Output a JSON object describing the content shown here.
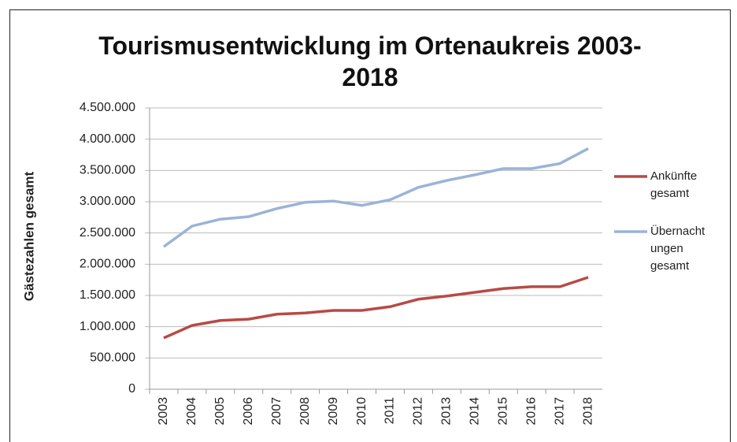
{
  "chart_data": {
    "type": "line",
    "title": "Tourismusentwicklung im Ortenaukreis 2003-2018",
    "y_label": "Gästezahlen gesamt",
    "categories": [
      "2003",
      "2004",
      "2005",
      "2006",
      "2007",
      "2008",
      "2009",
      "2010",
      "2011",
      "2012",
      "2013",
      "2014",
      "2015",
      "2016",
      "2017",
      "2018"
    ],
    "series": [
      {
        "name": "Ankünfte gesamt",
        "color": "#b84a45",
        "values": [
          820000,
          1020000,
          1100000,
          1120000,
          1200000,
          1220000,
          1260000,
          1260000,
          1320000,
          1440000,
          1490000,
          1550000,
          1610000,
          1640000,
          1640000,
          1790000
        ]
      },
      {
        "name": "Übernachtungen gesamt",
        "color": "#9bb3d8",
        "values": [
          2280000,
          2610000,
          2720000,
          2760000,
          2890000,
          2990000,
          3010000,
          2940000,
          3030000,
          3230000,
          3340000,
          3430000,
          3530000,
          3530000,
          3610000,
          3850000
        ]
      }
    ],
    "ylim": [
      0,
      4500000
    ],
    "yticks": [
      0,
      {
        "value": 500000,
        "label": "500.000"
      },
      {
        "value": 1000000,
        "label": "1.000.000"
      },
      {
        "value": 1500000,
        "label": "1.500.000"
      },
      {
        "value": 2000000,
        "label": "2.000.000"
      },
      {
        "value": 2500000,
        "label": "2.500.000"
      },
      {
        "value": 3000000,
        "label": "3.000.000"
      },
      {
        "value": 3500000,
        "label": "3.500.000"
      },
      {
        "value": 4000000,
        "label": "4.000.000"
      },
      {
        "value": 4500000,
        "label": "4.500.000"
      }
    ],
    "grid": true,
    "legend": "right"
  }
}
